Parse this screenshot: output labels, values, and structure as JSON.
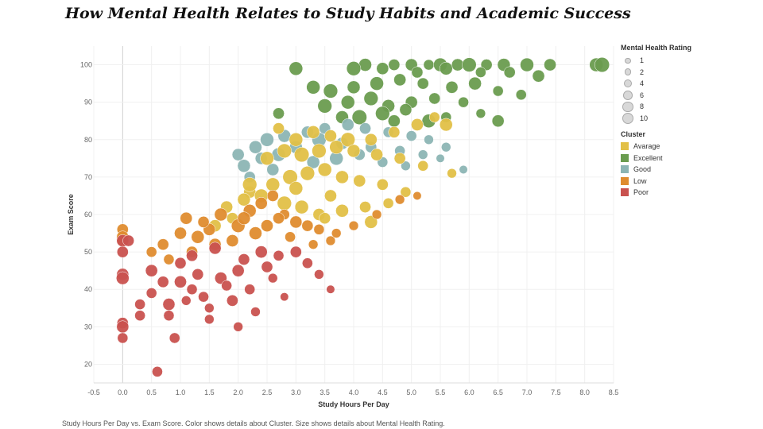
{
  "title": "How Mental Health Relates to Study Habits and Academic Success",
  "footer": "Study Hours Per Day vs. Exam Score.  Color shows details about Cluster.  Size shows details about Mental Health Rating.",
  "legend": {
    "size_title": "Mental Health Rating",
    "sizes": [
      {
        "label": "1",
        "value": 1
      },
      {
        "label": "2",
        "value": 2
      },
      {
        "label": "4",
        "value": 4
      },
      {
        "label": "6",
        "value": 6
      },
      {
        "label": "8",
        "value": 8
      },
      {
        "label": "10",
        "value": 10
      }
    ],
    "cluster_title": "Cluster",
    "clusters": [
      {
        "label": "Avarage",
        "color": "#e2c047"
      },
      {
        "label": "Excellent",
        "color": "#6a9c4f"
      },
      {
        "label": "Good",
        "color": "#8cb5b4"
      },
      {
        "label": "Low",
        "color": "#df8c2f"
      },
      {
        "label": "Poor",
        "color": "#c9524f"
      }
    ]
  },
  "chart_data": {
    "type": "scatter",
    "title": "How Mental Health Relates to Study Habits and Academic Success",
    "xlabel": "Study Hours Per Day",
    "ylabel": "Exam Score",
    "xlim": [
      -0.5,
      8.5
    ],
    "ylim": [
      15,
      105
    ],
    "xticks": [
      "-0.5",
      "0.0",
      "0.5",
      "1.0",
      "1.5",
      "2.0",
      "2.5",
      "3.0",
      "3.5",
      "4.0",
      "4.5",
      "5.0",
      "5.5",
      "6.0",
      "6.5",
      "7.0",
      "7.5",
      "8.0",
      "8.5"
    ],
    "yticks": [
      "20",
      "30",
      "40",
      "50",
      "60",
      "70",
      "80",
      "90",
      "100"
    ],
    "grid": true,
    "legend_position": "right",
    "color_by": "Cluster",
    "size_by": "Mental Health Rating",
    "series": [
      {
        "name": "Excellent",
        "points": [
          [
            3.0,
            99,
            8
          ],
          [
            4.2,
            100,
            7
          ],
          [
            4.7,
            100,
            5
          ],
          [
            5.0,
            100,
            6
          ],
          [
            5.3,
            100,
            4
          ],
          [
            5.5,
            100,
            8
          ],
          [
            5.8,
            100,
            6
          ],
          [
            6.0,
            100,
            9
          ],
          [
            6.3,
            100,
            5
          ],
          [
            6.6,
            100,
            7
          ],
          [
            7.0,
            100,
            8
          ],
          [
            7.4,
            100,
            6
          ],
          [
            8.2,
            100,
            8
          ],
          [
            8.3,
            100,
            10
          ],
          [
            4.0,
            99,
            9
          ],
          [
            4.5,
            99,
            6
          ],
          [
            5.1,
            98,
            5
          ],
          [
            5.6,
            99,
            7
          ],
          [
            6.2,
            98,
            4
          ],
          [
            6.7,
            98,
            5
          ],
          [
            7.2,
            97,
            6
          ],
          [
            3.3,
            94,
            8
          ],
          [
            3.6,
            93,
            9
          ],
          [
            4.0,
            94,
            7
          ],
          [
            4.4,
            95,
            8
          ],
          [
            4.8,
            96,
            6
          ],
          [
            5.2,
            95,
            5
          ],
          [
            5.7,
            94,
            6
          ],
          [
            6.1,
            95,
            7
          ],
          [
            6.5,
            93,
            4
          ],
          [
            6.9,
            92,
            4
          ],
          [
            3.5,
            89,
            9
          ],
          [
            3.9,
            90,
            8
          ],
          [
            4.3,
            91,
            9
          ],
          [
            4.6,
            89,
            7
          ],
          [
            5.0,
            90,
            6
          ],
          [
            5.4,
            91,
            5
          ],
          [
            5.9,
            90,
            4
          ],
          [
            6.2,
            87,
            3
          ],
          [
            6.5,
            85,
            6
          ],
          [
            2.7,
            87,
            5
          ],
          [
            4.1,
            86,
            10
          ],
          [
            4.5,
            87,
            9
          ],
          [
            4.9,
            88,
            6
          ],
          [
            5.3,
            85,
            8
          ],
          [
            5.6,
            86,
            4
          ],
          [
            3.8,
            86,
            7
          ],
          [
            4.7,
            85,
            6
          ]
        ]
      },
      {
        "name": "Good",
        "points": [
          [
            2.0,
            76,
            6
          ],
          [
            2.3,
            78,
            7
          ],
          [
            2.5,
            80,
            8
          ],
          [
            2.8,
            81,
            7
          ],
          [
            3.2,
            82,
            6
          ],
          [
            3.5,
            83,
            5
          ],
          [
            3.9,
            84,
            6
          ],
          [
            4.2,
            83,
            5
          ],
          [
            4.6,
            82,
            4
          ],
          [
            5.0,
            81,
            4
          ],
          [
            5.3,
            80,
            3
          ],
          [
            5.6,
            78,
            3
          ],
          [
            5.9,
            72,
            2
          ],
          [
            2.1,
            73,
            7
          ],
          [
            2.4,
            75,
            6
          ],
          [
            2.7,
            76,
            8
          ],
          [
            3.0,
            78,
            7
          ],
          [
            3.4,
            80,
            9
          ],
          [
            3.8,
            79,
            6
          ],
          [
            4.3,
            78,
            5
          ],
          [
            4.8,
            77,
            4
          ],
          [
            5.2,
            76,
            3
          ],
          [
            5.5,
            75,
            2
          ],
          [
            2.2,
            70,
            5
          ],
          [
            2.6,
            72,
            6
          ],
          [
            3.3,
            74,
            7
          ],
          [
            3.7,
            75,
            8
          ],
          [
            4.1,
            76,
            5
          ],
          [
            4.5,
            74,
            4
          ],
          [
            4.9,
            73,
            3
          ]
        ]
      },
      {
        "name": "Avarage",
        "points": [
          [
            2.7,
            83,
            5
          ],
          [
            3.0,
            80,
            8
          ],
          [
            3.3,
            82,
            7
          ],
          [
            3.6,
            81,
            6
          ],
          [
            3.9,
            80,
            9
          ],
          [
            4.3,
            80,
            6
          ],
          [
            4.7,
            82,
            5
          ],
          [
            5.1,
            84,
            6
          ],
          [
            5.4,
            86,
            4
          ],
          [
            5.6,
            84,
            7
          ],
          [
            2.5,
            75,
            8
          ],
          [
            2.8,
            77,
            9
          ],
          [
            3.1,
            76,
            10
          ],
          [
            3.4,
            77,
            9
          ],
          [
            3.7,
            78,
            8
          ],
          [
            4.0,
            77,
            7
          ],
          [
            4.4,
            76,
            6
          ],
          [
            4.8,
            75,
            5
          ],
          [
            5.2,
            73,
            4
          ],
          [
            5.7,
            71,
            3
          ],
          [
            2.2,
            66,
            6
          ],
          [
            2.6,
            68,
            8
          ],
          [
            2.9,
            70,
            10
          ],
          [
            3.2,
            71,
            9
          ],
          [
            3.5,
            72,
            8
          ],
          [
            3.8,
            70,
            7
          ],
          [
            4.1,
            69,
            6
          ],
          [
            4.5,
            68,
            5
          ],
          [
            4.9,
            66,
            4
          ],
          [
            1.8,
            62,
            6
          ],
          [
            2.1,
            64,
            7
          ],
          [
            2.4,
            65,
            8
          ],
          [
            2.8,
            63,
            9
          ],
          [
            3.1,
            62,
            8
          ],
          [
            3.4,
            60,
            6
          ],
          [
            3.8,
            61,
            7
          ],
          [
            4.2,
            62,
            5
          ],
          [
            4.6,
            63,
            4
          ],
          [
            4.3,
            58,
            7
          ],
          [
            3.5,
            59,
            5
          ],
          [
            1.6,
            57,
            6
          ],
          [
            1.9,
            59,
            5
          ],
          [
            2.2,
            68,
            9
          ],
          [
            3.0,
            67,
            8
          ],
          [
            3.6,
            65,
            6
          ]
        ]
      },
      {
        "name": "Low",
        "points": [
          [
            0.0,
            56,
            5
          ],
          [
            0.0,
            54,
            6
          ],
          [
            0.0,
            53,
            5
          ],
          [
            0.5,
            50,
            4
          ],
          [
            0.7,
            52,
            5
          ],
          [
            1.0,
            55,
            6
          ],
          [
            1.1,
            59,
            6
          ],
          [
            1.3,
            54,
            7
          ],
          [
            1.5,
            56,
            6
          ],
          [
            1.7,
            60,
            7
          ],
          [
            2.0,
            57,
            8
          ],
          [
            2.2,
            61,
            7
          ],
          [
            2.4,
            63,
            6
          ],
          [
            2.6,
            65,
            5
          ],
          [
            2.8,
            60,
            4
          ],
          [
            3.0,
            58,
            6
          ],
          [
            3.2,
            57,
            5
          ],
          [
            3.4,
            56,
            4
          ],
          [
            3.7,
            55,
            3
          ],
          [
            4.0,
            57,
            3
          ],
          [
            0.8,
            48,
            4
          ],
          [
            1.2,
            50,
            5
          ],
          [
            1.6,
            52,
            6
          ],
          [
            1.9,
            53,
            6
          ],
          [
            2.3,
            55,
            7
          ],
          [
            2.5,
            57,
            6
          ],
          [
            2.7,
            59,
            5
          ],
          [
            2.9,
            54,
            4
          ],
          [
            3.3,
            52,
            3
          ],
          [
            3.6,
            53,
            3
          ],
          [
            4.4,
            60,
            3
          ],
          [
            4.8,
            64,
            3
          ],
          [
            5.1,
            65,
            2
          ],
          [
            1.4,
            58,
            5
          ],
          [
            2.1,
            59,
            7
          ]
        ]
      },
      {
        "name": "Poor",
        "points": [
          [
            0.0,
            53,
            6
          ],
          [
            0.0,
            50,
            5
          ],
          [
            0.0,
            44,
            6
          ],
          [
            0.0,
            43,
            7
          ],
          [
            0.0,
            31,
            5
          ],
          [
            0.0,
            30,
            6
          ],
          [
            0.0,
            27,
            4
          ],
          [
            0.1,
            53,
            5
          ],
          [
            0.3,
            36,
            4
          ],
          [
            0.3,
            33,
            4
          ],
          [
            0.5,
            45,
            6
          ],
          [
            0.5,
            39,
            4
          ],
          [
            0.6,
            18,
            4
          ],
          [
            0.7,
            42,
            5
          ],
          [
            0.8,
            36,
            6
          ],
          [
            0.8,
            33,
            4
          ],
          [
            0.9,
            27,
            4
          ],
          [
            1.0,
            47,
            5
          ],
          [
            1.0,
            42,
            6
          ],
          [
            1.1,
            37,
            3
          ],
          [
            1.2,
            40,
            4
          ],
          [
            1.3,
            44,
            5
          ],
          [
            1.4,
            38,
            4
          ],
          [
            1.5,
            35,
            3
          ],
          [
            1.5,
            32,
            3
          ],
          [
            1.7,
            43,
            6
          ],
          [
            1.8,
            41,
            4
          ],
          [
            1.9,
            37,
            5
          ],
          [
            2.0,
            45,
            6
          ],
          [
            2.0,
            30,
            3
          ],
          [
            2.1,
            48,
            5
          ],
          [
            2.2,
            40,
            4
          ],
          [
            2.3,
            34,
            3
          ],
          [
            2.5,
            46,
            5
          ],
          [
            2.6,
            43,
            3
          ],
          [
            2.8,
            38,
            2
          ],
          [
            3.0,
            50,
            5
          ],
          [
            3.2,
            47,
            4
          ],
          [
            3.4,
            44,
            3
          ],
          [
            3.6,
            40,
            2
          ],
          [
            1.2,
            49,
            5
          ],
          [
            1.6,
            51,
            6
          ],
          [
            2.4,
            50,
            6
          ],
          [
            2.7,
            49,
            4
          ]
        ]
      }
    ]
  }
}
